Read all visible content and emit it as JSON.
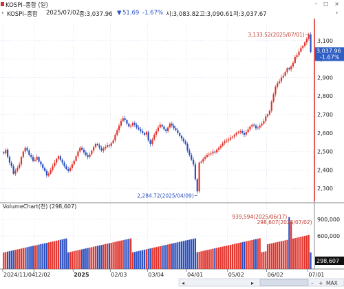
{
  "window": {
    "title": "KOSPI–종합 (일)",
    "controls": "– □ ×"
  },
  "info": {
    "nav": "‹",
    "symbol": "KOSPI–종합",
    "date": "2025/07/02",
    "close_label": "종:3,037.96",
    "change_arrow": "▼",
    "change": "51.69",
    "change_pct": "-1.67%",
    "open_label": "시:3,083.82",
    "high_label": "고:3,090.61",
    "low_label": "저:3,037.67",
    "nav_right": "›"
  },
  "colors": {
    "up": "#e0342c",
    "down": "#2a4fbf",
    "grid": "#cfd8e8",
    "annotation": "#c0392b",
    "current_bg": "#2f5fc4",
    "axis_line": "#d22"
  },
  "chart_data": {
    "type": "candlestick",
    "price": {
      "ylim": [
        2230,
        3200
      ],
      "yticks": [
        2300,
        2400,
        2500,
        2600,
        2700,
        2800,
        2900,
        3000,
        3100
      ],
      "ytick_labels": [
        "2,300",
        "2,400",
        "2,500",
        "2,600",
        "2,700",
        "2,800",
        "2,900",
        "3,000",
        "3,100"
      ],
      "current": {
        "value": 3037.96,
        "label": "3,037.96",
        "pct": "-1.67%"
      },
      "high_annotation": {
        "value": 3133.52,
        "label": "3,133.52(2025/07/01)"
      },
      "low_annotation": {
        "value": 2284.72,
        "label": "2,284.72(2025/04/09)"
      },
      "series": [
        {
          "period": "2024-11",
          "points": [
            2490,
            2510,
            2470,
            2440,
            2420,
            2380,
            2395,
            2410,
            2430,
            2470,
            2500,
            2520,
            2505,
            2480,
            2470,
            2450
          ]
        },
        {
          "period": "2024-12",
          "points": [
            2455,
            2470,
            2445,
            2430,
            2410,
            2395,
            2370,
            2380,
            2400,
            2420,
            2440,
            2460,
            2475,
            2455,
            2440,
            2420,
            2405,
            2395,
            2410,
            2430
          ]
        },
        {
          "period": "2025-01",
          "points": [
            2450,
            2475,
            2500,
            2520,
            2510,
            2495,
            2480,
            2470,
            2485,
            2505,
            2525,
            2540,
            2535,
            2520,
            2505,
            2515,
            2525,
            2535,
            2530
          ]
        },
        {
          "period": "2025-02",
          "points": [
            2545,
            2560,
            2590,
            2615,
            2640,
            2665,
            2680,
            2670,
            2650,
            2635,
            2640,
            2655,
            2645,
            2630,
            2620,
            2610,
            2600,
            2590,
            2605
          ]
        },
        {
          "period": "2025-03",
          "points": [
            2560,
            2540,
            2565,
            2590,
            2610,
            2630,
            2645,
            2635,
            2620,
            2610,
            2630,
            2650,
            2640,
            2625,
            2615,
            2600,
            2585,
            2570,
            2555,
            2540
          ]
        },
        {
          "period": "2025-04",
          "points": [
            2505,
            2480,
            2455,
            2430,
            2350,
            2284.72,
            2440,
            2445,
            2460,
            2470,
            2480,
            2485,
            2490,
            2500,
            2495,
            2510,
            2520,
            2530,
            2545,
            2555,
            2560
          ]
        },
        {
          "period": "2025-05",
          "points": [
            2565,
            2575,
            2580,
            2590,
            2600,
            2605,
            2610,
            2600,
            2590,
            2605,
            2620,
            2635,
            2645,
            2640,
            2625,
            2630,
            2640,
            2650,
            2665,
            2690
          ]
        },
        {
          "period": "2025-06",
          "points": [
            2700,
            2720,
            2770,
            2810,
            2850,
            2870,
            2880,
            2900,
            2910,
            2930,
            2950,
            2945,
            2960,
            2980,
            3010,
            3020,
            3040,
            3060,
            3070,
            3090,
            3110
          ]
        },
        {
          "period": "2025-07",
          "points": [
            3133.52,
            3037.96
          ]
        }
      ]
    },
    "volume": {
      "label": "VolumeChart(천)",
      "current_label": "(298,607)",
      "ylim": [
        0,
        1050000
      ],
      "yticks": [
        600000,
        900000
      ],
      "ytick_labels": [
        "600,000",
        "900,000"
      ],
      "current": {
        "value": 298607,
        "label": "298,607"
      },
      "high_annotation": {
        "value": 939594,
        "label": "939,594(2025/06/17)"
      },
      "last_annotation": {
        "value": 298607,
        "label": "298,607(2025/07/02)"
      }
    },
    "x_axis": {
      "ticks": [
        {
          "label": "2024/11/04",
          "period": "2024-11",
          "offset": 0
        },
        {
          "label": "12/02",
          "period": "2024-12",
          "offset": 0
        },
        {
          "label": "2025",
          "period": "2025-01",
          "offset": 0
        },
        {
          "label": "02/03",
          "period": "2025-02",
          "offset": 0
        },
        {
          "label": "03/04",
          "period": "2025-03",
          "offset": 0
        },
        {
          "label": "04/01",
          "period": "2025-04",
          "offset": 0
        },
        {
          "label": "05/02",
          "period": "2025-05",
          "offset": 0
        },
        {
          "label": "06/02",
          "period": "2025-06",
          "offset": 0
        },
        {
          "label": "07/01",
          "period": "2025-07",
          "offset": 0
        }
      ]
    }
  },
  "scroll": {
    "left_arrow": "◂",
    "right_arrow": "▸",
    "minus": "–",
    "plus": "+",
    "max_label": "MAX"
  }
}
